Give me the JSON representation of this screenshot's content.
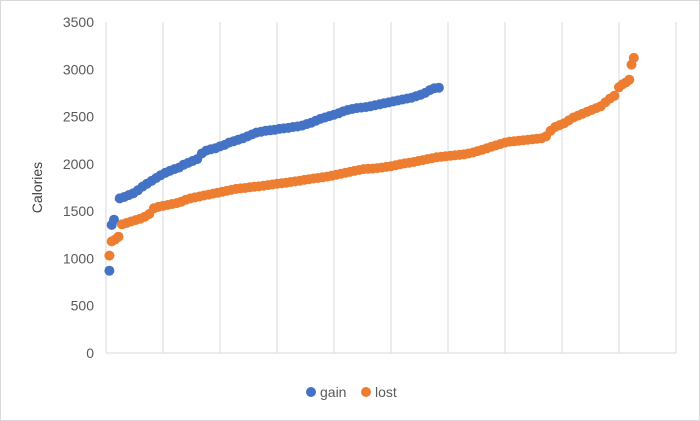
{
  "chart_data": {
    "type": "scatter",
    "title": "",
    "xlabel": "",
    "ylabel": "Calories",
    "ylim": [
      0,
      3500
    ],
    "xlim": [
      0,
      250
    ],
    "y_ticks": [
      "0",
      "500",
      "1000",
      "1500",
      "2000",
      "2500",
      "3000",
      "3500"
    ],
    "grid": "vertical",
    "legend_position": "bottom",
    "series": [
      {
        "name": "gain",
        "color": "#4472C4",
        "points": [
          [
            1.5,
            870
          ],
          [
            2.5,
            1355
          ],
          [
            3.5,
            1410
          ],
          [
            6,
            1635
          ],
          [
            8,
            1650
          ],
          [
            10,
            1670
          ],
          [
            12,
            1690
          ],
          [
            14,
            1720
          ],
          [
            16,
            1760
          ],
          [
            18,
            1790
          ],
          [
            20,
            1820
          ],
          [
            22,
            1850
          ],
          [
            24,
            1880
          ],
          [
            26,
            1905
          ],
          [
            28,
            1925
          ],
          [
            30,
            1945
          ],
          [
            32,
            1960
          ],
          [
            34,
            1990
          ],
          [
            36,
            2010
          ],
          [
            38,
            2030
          ],
          [
            40,
            2050
          ],
          [
            42,
            2110
          ],
          [
            44,
            2140
          ],
          [
            46,
            2155
          ],
          [
            48,
            2165
          ],
          [
            50,
            2185
          ],
          [
            52,
            2200
          ],
          [
            54,
            2225
          ],
          [
            56,
            2240
          ],
          [
            58,
            2255
          ],
          [
            60,
            2270
          ],
          [
            62,
            2290
          ],
          [
            64,
            2310
          ],
          [
            66,
            2330
          ],
          [
            68,
            2340
          ],
          [
            70,
            2350
          ],
          [
            72,
            2355
          ],
          [
            74,
            2360
          ],
          [
            76,
            2370
          ],
          [
            78,
            2375
          ],
          [
            80,
            2380
          ],
          [
            82,
            2390
          ],
          [
            84,
            2395
          ],
          [
            86,
            2405
          ],
          [
            88,
            2420
          ],
          [
            90,
            2435
          ],
          [
            92,
            2455
          ],
          [
            94,
            2475
          ],
          [
            96,
            2490
          ],
          [
            98,
            2505
          ],
          [
            100,
            2520
          ],
          [
            102,
            2535
          ],
          [
            104,
            2555
          ],
          [
            106,
            2570
          ],
          [
            108,
            2580
          ],
          [
            110,
            2590
          ],
          [
            112,
            2595
          ],
          [
            114,
            2600
          ],
          [
            116,
            2610
          ],
          [
            118,
            2620
          ],
          [
            120,
            2630
          ],
          [
            122,
            2640
          ],
          [
            124,
            2650
          ],
          [
            126,
            2660
          ],
          [
            128,
            2670
          ],
          [
            130,
            2680
          ],
          [
            132,
            2690
          ],
          [
            134,
            2700
          ],
          [
            136,
            2715
          ],
          [
            138,
            2730
          ],
          [
            140,
            2750
          ],
          [
            142,
            2780
          ],
          [
            144,
            2800
          ],
          [
            146,
            2805
          ]
        ]
      },
      {
        "name": "lost",
        "color": "#ED7D31",
        "points": [
          [
            1.5,
            1030
          ],
          [
            2.5,
            1180
          ],
          [
            4,
            1200
          ],
          [
            5.5,
            1230
          ],
          [
            7,
            1360
          ],
          [
            9,
            1375
          ],
          [
            11,
            1390
          ],
          [
            13,
            1405
          ],
          [
            15,
            1420
          ],
          [
            17,
            1440
          ],
          [
            19,
            1470
          ],
          [
            21,
            1530
          ],
          [
            23,
            1545
          ],
          [
            25,
            1555
          ],
          [
            27,
            1565
          ],
          [
            29,
            1575
          ],
          [
            31,
            1585
          ],
          [
            33,
            1600
          ],
          [
            35,
            1620
          ],
          [
            37,
            1635
          ],
          [
            39,
            1645
          ],
          [
            41,
            1655
          ],
          [
            43,
            1665
          ],
          [
            45,
            1675
          ],
          [
            47,
            1685
          ],
          [
            49,
            1695
          ],
          [
            51,
            1705
          ],
          [
            53,
            1715
          ],
          [
            55,
            1725
          ],
          [
            57,
            1735
          ],
          [
            59,
            1740
          ],
          [
            61,
            1745
          ],
          [
            63,
            1752
          ],
          [
            65,
            1758
          ],
          [
            67,
            1762
          ],
          [
            69,
            1768
          ],
          [
            71,
            1775
          ],
          [
            73,
            1782
          ],
          [
            75,
            1790
          ],
          [
            77,
            1795
          ],
          [
            79,
            1800
          ],
          [
            81,
            1808
          ],
          [
            83,
            1815
          ],
          [
            85,
            1822
          ],
          [
            87,
            1830
          ],
          [
            89,
            1838
          ],
          [
            91,
            1845
          ],
          [
            93,
            1850
          ],
          [
            95,
            1858
          ],
          [
            97,
            1865
          ],
          [
            99,
            1875
          ],
          [
            101,
            1885
          ],
          [
            103,
            1895
          ],
          [
            105,
            1905
          ],
          [
            107,
            1915
          ],
          [
            109,
            1925
          ],
          [
            111,
            1935
          ],
          [
            113,
            1945
          ],
          [
            115,
            1948
          ],
          [
            117,
            1950
          ],
          [
            119,
            1955
          ],
          [
            121,
            1960
          ],
          [
            123,
            1968
          ],
          [
            125,
            1975
          ],
          [
            127,
            1985
          ],
          [
            129,
            1995
          ],
          [
            131,
            2005
          ],
          [
            133,
            2012
          ],
          [
            135,
            2020
          ],
          [
            137,
            2030
          ],
          [
            139,
            2040
          ],
          [
            141,
            2050
          ],
          [
            143,
            2060
          ],
          [
            145,
            2070
          ],
          [
            147,
            2075
          ],
          [
            149,
            2080
          ],
          [
            151,
            2085
          ],
          [
            153,
            2090
          ],
          [
            155,
            2095
          ],
          [
            157,
            2100
          ],
          [
            159,
            2110
          ],
          [
            161,
            2120
          ],
          [
            163,
            2135
          ],
          [
            165,
            2150
          ],
          [
            167,
            2165
          ],
          [
            169,
            2180
          ],
          [
            171,
            2195
          ],
          [
            173,
            2210
          ],
          [
            175,
            2225
          ],
          [
            177,
            2235
          ],
          [
            179,
            2240
          ],
          [
            181,
            2245
          ],
          [
            183,
            2250
          ],
          [
            185,
            2255
          ],
          [
            187,
            2260
          ],
          [
            189,
            2265
          ],
          [
            191,
            2270
          ],
          [
            193,
            2290
          ],
          [
            195,
            2350
          ],
          [
            197,
            2390
          ],
          [
            199,
            2410
          ],
          [
            201,
            2430
          ],
          [
            203,
            2460
          ],
          [
            205,
            2490
          ],
          [
            207,
            2510
          ],
          [
            209,
            2530
          ],
          [
            211,
            2550
          ],
          [
            213,
            2570
          ],
          [
            215,
            2590
          ],
          [
            217,
            2610
          ],
          [
            219,
            2650
          ],
          [
            221,
            2690
          ],
          [
            223,
            2720
          ],
          [
            225,
            2810
          ],
          [
            226.5,
            2840
          ],
          [
            228,
            2860
          ],
          [
            229.5,
            2890
          ],
          [
            230.5,
            3050
          ],
          [
            231.5,
            3120
          ]
        ]
      }
    ]
  }
}
